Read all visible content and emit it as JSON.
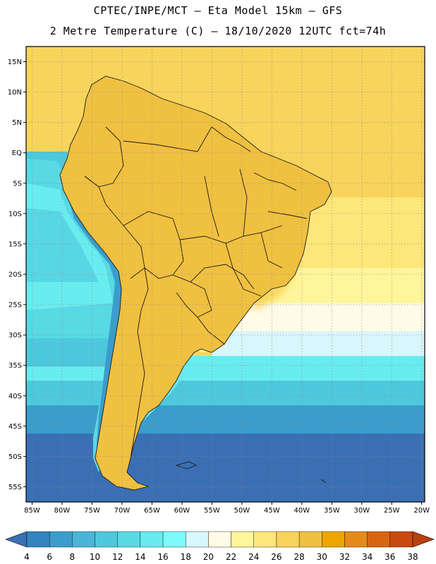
{
  "header": {
    "line1": "CPTEC/INPE/MCT –  Eta Model 15km – GFS",
    "line2": "2 Metre Temperature (C) – 18/10/2020 12UTC fct=74h"
  },
  "axes": {
    "lat_labels": [
      "15N",
      "10N",
      "5N",
      "EQ",
      "5S",
      "10S",
      "15S",
      "20S",
      "25S",
      "30S",
      "35S",
      "40S",
      "45S",
      "50S",
      "55S"
    ],
    "lat_values": [
      15,
      10,
      5,
      0,
      -5,
      -10,
      -15,
      -20,
      -25,
      -30,
      -35,
      -40,
      -45,
      -50,
      -55
    ],
    "lon_labels": [
      "85W",
      "80W",
      "75W",
      "70W",
      "65W",
      "60W",
      "55W",
      "50W",
      "45W",
      "40W",
      "35W",
      "30W",
      "25W",
      "20W"
    ],
    "lon_values": [
      -85,
      -80,
      -75,
      -70,
      -65,
      -60,
      -55,
      -50,
      -45,
      -40,
      -35,
      -30,
      -25,
      -20
    ],
    "lat_range": [
      -57.5,
      17.5
    ],
    "lon_range": [
      -86,
      -19.5
    ]
  },
  "colorbar": {
    "levels": [
      "4",
      "6",
      "8",
      "10",
      "12",
      "14",
      "16",
      "18",
      "20",
      "22",
      "24",
      "26",
      "28",
      "30",
      "32",
      "34",
      "36",
      "38"
    ],
    "colors": [
      "#3b6fb4",
      "#3385bf",
      "#3a9dcc",
      "#4ab5d6",
      "#4ec8dc",
      "#58d9e4",
      "#69ecef",
      "#7dfafa",
      "#d8f6fb",
      "#fffbe6",
      "#fff59a",
      "#fde67a",
      "#f8d45c",
      "#f0c040",
      "#eda600",
      "#e68a1c",
      "#da6510",
      "#c84a10",
      "#b8400f"
    ]
  }
}
